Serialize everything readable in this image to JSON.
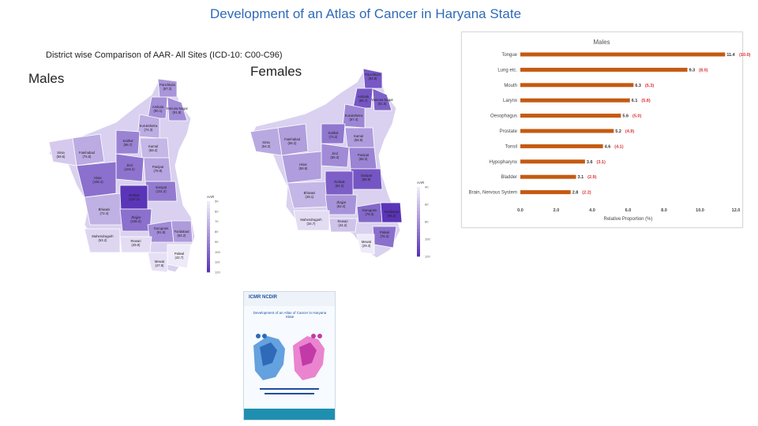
{
  "page": {
    "title": "Development of an Atlas of Cancer in Haryana State",
    "subtitle": "District wise Comparison of AAR- All Sites (ICD-10: C00-C96)",
    "males_label": "Males",
    "females_label": "Females"
  },
  "maps": {
    "males": {
      "legend_title": "AAR",
      "legend_ticks": [
        "50",
        "60",
        "70",
        "80",
        "90",
        "100",
        "110",
        "120"
      ],
      "color_low": "#efeaf8",
      "color_high": "#5a35b8",
      "districts": [
        {
          "name": "Panchkula",
          "value": "(87.2)"
        },
        {
          "name": "Ambala",
          "value": "(90.1)"
        },
        {
          "name": "Yamuna Nagar",
          "value": "(91.9)"
        },
        {
          "name": "Kurukshetra",
          "value": "(74.3)"
        },
        {
          "name": "Kaithal",
          "value": "(96.7)"
        },
        {
          "name": "Karnal",
          "value": "(69.2)"
        },
        {
          "name": "Sirsa",
          "value": "(59.5)"
        },
        {
          "name": "Fatehabad",
          "value": "(75.5)"
        },
        {
          "name": "Jind",
          "value": "(104.2)"
        },
        {
          "name": "Panipat",
          "value": "(78.8)"
        },
        {
          "name": "Hisar",
          "value": "(106.4)"
        },
        {
          "name": "Sonipat",
          "value": "(101.3)"
        },
        {
          "name": "Rohtak",
          "value": "(137.2)"
        },
        {
          "name": "Bhiwani",
          "value": "(72.4)"
        },
        {
          "name": "Jhajjar",
          "value": "(106.3)"
        },
        {
          "name": "Gurugram",
          "value": "(91.8)"
        },
        {
          "name": "Faridabad",
          "value": "(84.2)"
        },
        {
          "name": "Mahendragarh",
          "value": "(53.2)"
        },
        {
          "name": "Rewari",
          "value": "(49.9)"
        },
        {
          "name": "Palwal",
          "value": "(42.7)"
        },
        {
          "name": "Mewat",
          "value": "(47.8)"
        }
      ]
    },
    "females": {
      "legend_title": "AAR",
      "legend_ticks": [
        "40",
        "60",
        "80",
        "100",
        "120"
      ],
      "color_low": "#efeaf8",
      "color_high": "#5a35b8",
      "districts": [
        {
          "name": "Panchkula",
          "value": "(84.9)"
        },
        {
          "name": "Ambala",
          "value": "(85.7)"
        },
        {
          "name": "Yamuna Nagar",
          "value": "(81.5)"
        },
        {
          "name": "Kurukshetra",
          "value": "(67.4)"
        },
        {
          "name": "Kaithal",
          "value": "(73.2)"
        },
        {
          "name": "Karnal",
          "value": "(58.9)"
        },
        {
          "name": "Sirsa",
          "value": "(54.2)"
        },
        {
          "name": "Fatehabad",
          "value": "(58.2)"
        },
        {
          "name": "Jind",
          "value": "(65.3)"
        },
        {
          "name": "Panipat",
          "value": "(68.3)"
        },
        {
          "name": "Hisar",
          "value": "(58.8)"
        },
        {
          "name": "Sonipat",
          "value": "(85.9)"
        },
        {
          "name": "Rohtak",
          "value": "(82.2)"
        },
        {
          "name": "Bhiwani",
          "value": "(49.1)"
        },
        {
          "name": "Jhajjar",
          "value": "(62.4)"
        },
        {
          "name": "Gurugram",
          "value": "(78.3)"
        },
        {
          "name": "Faridabad",
          "value": "(98.2)"
        },
        {
          "name": "Mahendragarh",
          "value": "(34.7)"
        },
        {
          "name": "Rewari",
          "value": "(44.2)"
        },
        {
          "name": "Palwal",
          "value": "(76.2)"
        },
        {
          "name": "Mewat",
          "value": "(29.3)"
        }
      ]
    }
  },
  "chart_data": {
    "type": "bar",
    "orientation": "horizontal",
    "title": "Males",
    "xlabel": "Relative Proportion (%)",
    "ylabel": "",
    "xlim": [
      0,
      12
    ],
    "xticks": [
      "0.0",
      "2.0",
      "4.0",
      "6.0",
      "8.0",
      "10.0",
      "12.0"
    ],
    "categories": [
      "Tongue",
      "Lung etc.",
      "Mouth",
      "Larynx",
      "Oesophagus",
      "Prostate",
      "Tonsil",
      "Hypopharynx",
      "Bladder",
      "Brain, Nervous System"
    ],
    "values": [
      11.4,
      9.3,
      6.3,
      6.1,
      5.6,
      5.2,
      4.6,
      3.6,
      3.1,
      2.8
    ],
    "value_labels": [
      "11.4",
      "9.3",
      "6.3",
      "6.1",
      "5.6",
      "5.2",
      "4.6",
      "3.6",
      "3.1",
      "2.8"
    ],
    "secondary_labels": [
      "(10.0)",
      "(8.0)",
      "(5.3)",
      "(5.8)",
      "(5.0)",
      "(4.9)",
      "(4.1)",
      "(3.1)",
      "(2.9)",
      "(2.2)"
    ],
    "bar_color": "#c55a11",
    "secondary_color": "#e03131",
    "grid": false,
    "legend": "none"
  },
  "cover": {
    "logo_text": "ICMR NCDIR",
    "title": "Development of an Atlas of Cancer in Haryana State"
  }
}
